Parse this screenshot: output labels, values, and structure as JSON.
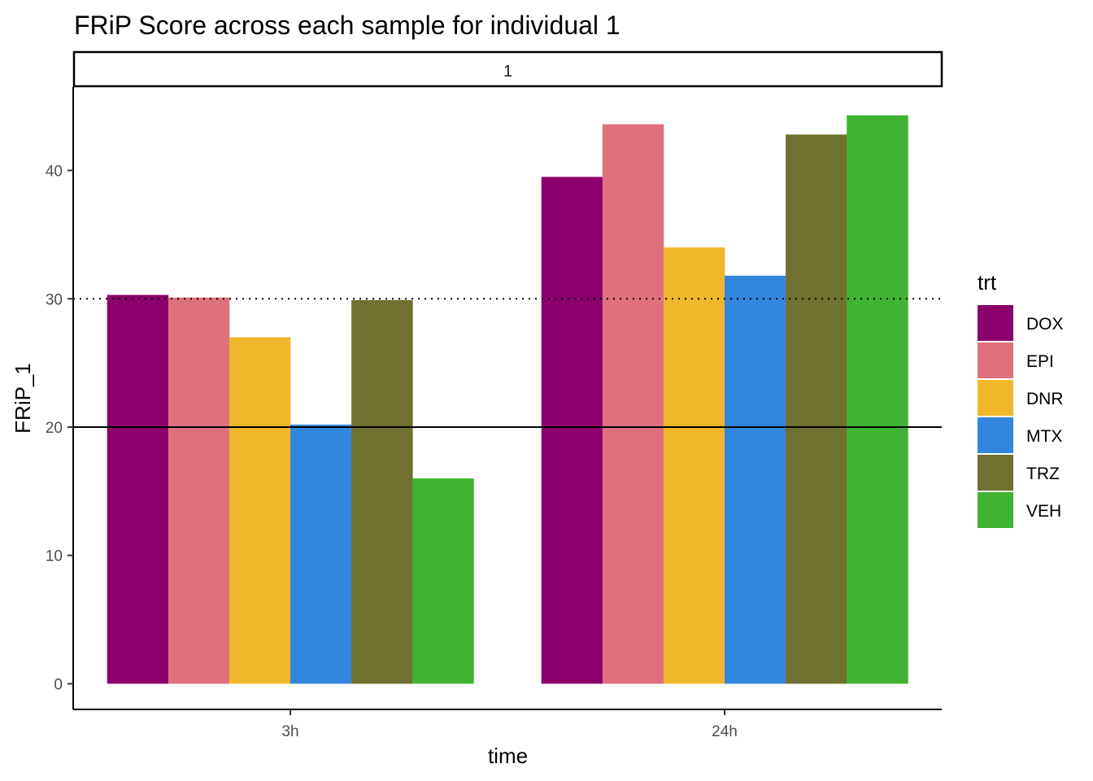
{
  "chart_data": {
    "type": "bar",
    "title": "FRiP Score across each sample for individual 1",
    "facet_label": "1",
    "xlabel": "time",
    "ylabel": "FRiP_1",
    "categories": [
      "3h",
      "24h"
    ],
    "ylim": [
      -2,
      46.5
    ],
    "yticks": [
      0,
      10,
      20,
      30,
      40
    ],
    "reference_lines": [
      {
        "y": 20,
        "style": "solid"
      },
      {
        "y": 30,
        "style": "dotted"
      }
    ],
    "legend": {
      "title": "trt",
      "position": "right"
    },
    "grid": false,
    "series": [
      {
        "name": "DOX",
        "color": "#8B006B",
        "values": [
          30.3,
          39.5
        ]
      },
      {
        "name": "EPI",
        "color": "#DF707E",
        "values": [
          30.1,
          43.6
        ]
      },
      {
        "name": "DNR",
        "color": "#F1B72B",
        "values": [
          27.0,
          34.0
        ]
      },
      {
        "name": "MTX",
        "color": "#3386DD",
        "values": [
          20.2,
          31.8
        ]
      },
      {
        "name": "TRZ",
        "color": "#707031",
        "values": [
          29.9,
          42.8
        ]
      },
      {
        "name": "VEH",
        "color": "#41B333",
        "values": [
          16.0,
          44.3
        ]
      }
    ]
  }
}
